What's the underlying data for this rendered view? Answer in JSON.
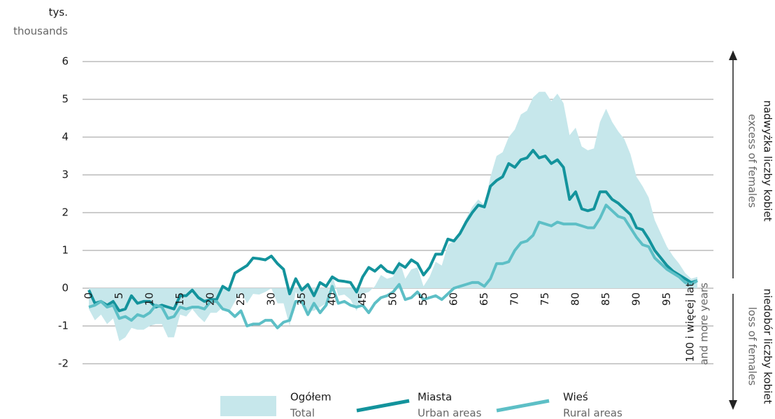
{
  "chart_data": {
    "type": "area-line",
    "unit_label": "tys.",
    "unit_label_en": "thousands",
    "upper_note": "nadwyżka liczby kobiet",
    "upper_note_en": "excess of females",
    "lower_note": "niedobór liczby kobiet",
    "lower_note_en": "loss of females",
    "categories": [
      "0",
      null,
      null,
      null,
      null,
      "5",
      null,
      null,
      null,
      null,
      "10",
      null,
      null,
      null,
      null,
      "15",
      null,
      null,
      null,
      null,
      "20",
      null,
      null,
      null,
      null,
      "25",
      null,
      null,
      null,
      null,
      "30",
      null,
      null,
      null,
      null,
      "35",
      null,
      null,
      null,
      null,
      "40",
      null,
      null,
      null,
      null,
      "45",
      null,
      null,
      null,
      null,
      "50",
      null,
      null,
      null,
      null,
      "55",
      null,
      null,
      null,
      null,
      "60",
      null,
      null,
      null,
      null,
      "65",
      null,
      null,
      null,
      null,
      "70",
      null,
      null,
      null,
      null,
      "75",
      null,
      null,
      null,
      null,
      "80",
      null,
      null,
      null,
      null,
      "85",
      null,
      null,
      null,
      null,
      "90",
      null,
      null,
      null,
      null,
      "95",
      null,
      null,
      null,
      null,
      "100 i więcej lat"
    ],
    "last_category_en": "and more years",
    "ylim": [
      -2.5,
      6.3
    ],
    "yticks": [
      -2,
      -1,
      0,
      1,
      2,
      3,
      4,
      5,
      6
    ],
    "grid": true,
    "series": [
      {
        "name": "Ogółem",
        "name_en": "Total",
        "color": "#c6e7eb",
        "kind": "area",
        "values": [
          -0.55,
          -0.85,
          -0.7,
          -0.95,
          -0.8,
          -1.4,
          -1.3,
          -1.05,
          -1.1,
          -1.1,
          -1.0,
          -0.95,
          -0.95,
          -1.3,
          -1.3,
          -0.7,
          -0.75,
          -0.55,
          -0.75,
          -0.9,
          -0.65,
          -0.65,
          -0.5,
          -0.65,
          -0.35,
          -0.1,
          -0.4,
          -0.15,
          -0.17,
          -0.1,
          0.0,
          -0.4,
          -0.4,
          -1.0,
          -0.1,
          -0.4,
          -0.6,
          -0.6,
          -0.5,
          -0.4,
          0.35,
          -0.2,
          -0.17,
          -0.3,
          -0.6,
          -0.15,
          -0.1,
          0.05,
          0.35,
          0.25,
          0.3,
          0.75,
          0.25,
          0.5,
          0.55,
          0.05,
          0.3,
          0.7,
          0.6,
          1.15,
          1.25,
          1.5,
          1.85,
          2.15,
          2.35,
          2.2,
          2.95,
          3.5,
          3.6,
          4.0,
          4.2,
          4.6,
          4.7,
          5.05,
          5.2,
          5.2,
          4.95,
          5.15,
          4.9,
          4.05,
          4.25,
          3.75,
          3.65,
          3.7,
          4.4,
          4.75,
          4.4,
          4.15,
          3.95,
          3.55,
          2.95,
          2.7,
          2.4,
          1.8,
          1.45,
          1.1,
          0.85,
          0.65,
          0.4,
          0.25,
          0.3
        ]
      },
      {
        "name": "Miasta",
        "name_en": "Urban areas",
        "color": "#13939c",
        "kind": "line",
        "values": [
          -0.05,
          -0.4,
          -0.35,
          -0.45,
          -0.35,
          -0.6,
          -0.55,
          -0.2,
          -0.4,
          -0.35,
          -0.35,
          -0.5,
          -0.45,
          -0.5,
          -0.55,
          -0.2,
          -0.2,
          -0.05,
          -0.25,
          -0.35,
          -0.3,
          -0.3,
          0.05,
          -0.05,
          0.4,
          0.5,
          0.6,
          0.8,
          0.78,
          0.75,
          0.85,
          0.65,
          0.5,
          -0.15,
          0.25,
          -0.05,
          0.1,
          -0.2,
          0.15,
          0.05,
          0.3,
          0.2,
          0.18,
          0.15,
          -0.1,
          0.3,
          0.55,
          0.45,
          0.6,
          0.45,
          0.4,
          0.65,
          0.55,
          0.75,
          0.65,
          0.35,
          0.55,
          0.9,
          0.9,
          1.3,
          1.25,
          1.45,
          1.75,
          2.0,
          2.2,
          2.15,
          2.7,
          2.85,
          2.95,
          3.3,
          3.2,
          3.4,
          3.45,
          3.65,
          3.45,
          3.5,
          3.3,
          3.4,
          3.2,
          2.35,
          2.55,
          2.1,
          2.05,
          2.1,
          2.55,
          2.55,
          2.35,
          2.25,
          2.1,
          1.95,
          1.6,
          1.55,
          1.3,
          1.0,
          0.8,
          0.6,
          0.45,
          0.35,
          0.25,
          0.15,
          0.2
        ]
      },
      {
        "name": "Wieś",
        "name_en": "Rural areas",
        "color": "#5dbfc6",
        "kind": "line",
        "values": [
          -0.5,
          -0.45,
          -0.35,
          -0.5,
          -0.45,
          -0.8,
          -0.75,
          -0.85,
          -0.7,
          -0.75,
          -0.65,
          -0.45,
          -0.5,
          -0.8,
          -0.75,
          -0.5,
          -0.55,
          -0.5,
          -0.5,
          -0.55,
          -0.35,
          -0.35,
          -0.55,
          -0.6,
          -0.75,
          -0.6,
          -1.0,
          -0.95,
          -0.95,
          -0.85,
          -0.85,
          -1.05,
          -0.9,
          -0.85,
          -0.35,
          -0.35,
          -0.7,
          -0.4,
          -0.65,
          -0.45,
          0.05,
          -0.4,
          -0.35,
          -0.45,
          -0.5,
          -0.45,
          -0.65,
          -0.4,
          -0.25,
          -0.2,
          -0.1,
          0.1,
          -0.3,
          -0.25,
          -0.1,
          -0.3,
          -0.25,
          -0.2,
          -0.3,
          -0.15,
          0.0,
          0.05,
          0.1,
          0.15,
          0.15,
          0.05,
          0.25,
          0.65,
          0.65,
          0.7,
          1.0,
          1.2,
          1.25,
          1.4,
          1.75,
          1.7,
          1.65,
          1.75,
          1.7,
          1.7,
          1.7,
          1.65,
          1.6,
          1.6,
          1.85,
          2.2,
          2.05,
          1.9,
          1.85,
          1.6,
          1.35,
          1.15,
          1.1,
          0.8,
          0.65,
          0.5,
          0.4,
          0.3,
          0.15,
          0.1,
          0.2
        ]
      }
    ]
  }
}
